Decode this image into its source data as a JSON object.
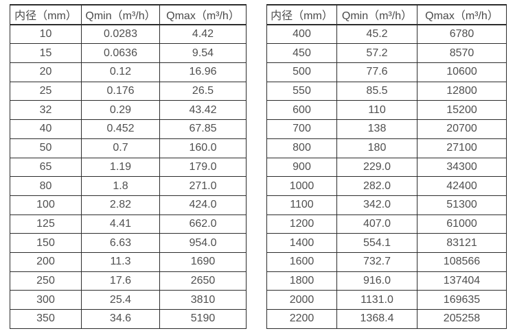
{
  "colors": {
    "background": "#ffffff",
    "border": "#2b2b2b",
    "text": "#4f4f4f"
  },
  "tables": [
    {
      "name": "flow-table-small-diameters",
      "headers": [
        "内径（mm）",
        "Qmin（m³/h）",
        "Qmax（m³/h）"
      ],
      "rows": [
        [
          "10",
          "0.0283",
          "4.42"
        ],
        [
          "15",
          "0.0636",
          "9.54"
        ],
        [
          "20",
          "0.12",
          "16.96"
        ],
        [
          "25",
          "0.176",
          "26.5"
        ],
        [
          "32",
          "0.29",
          "43.42"
        ],
        [
          "40",
          "0.452",
          "67.85"
        ],
        [
          "50",
          "0.7",
          "160.0"
        ],
        [
          "65",
          "1.19",
          "179.0"
        ],
        [
          "80",
          "1.8",
          "271.0"
        ],
        [
          "100",
          "2.82",
          "424.0"
        ],
        [
          "125",
          "4.41",
          "662.0"
        ],
        [
          "150",
          "6.63",
          "954.0"
        ],
        [
          "200",
          "11.3",
          "1690"
        ],
        [
          "250",
          "17.6",
          "2650"
        ],
        [
          "300",
          "25.4",
          "3810"
        ],
        [
          "350",
          "34.6",
          "5190"
        ]
      ]
    },
    {
      "name": "flow-table-large-diameters",
      "headers": [
        "内径（mm）",
        "Qmin（m³/h）",
        "Qmax（m³/h）"
      ],
      "rows": [
        [
          "400",
          "45.2",
          "6780"
        ],
        [
          "450",
          "57.2",
          "8570"
        ],
        [
          "500",
          "77.6",
          "10600"
        ],
        [
          "550",
          "85.5",
          "12800"
        ],
        [
          "600",
          "110",
          "15200"
        ],
        [
          "700",
          "138",
          "20700"
        ],
        [
          "800",
          "180",
          "27100"
        ],
        [
          "900",
          "229.0",
          "34300"
        ],
        [
          "1000",
          "282.0",
          "42400"
        ],
        [
          "1100",
          "342.0",
          "51300"
        ],
        [
          "1200",
          "407.0",
          "61000"
        ],
        [
          "1400",
          "554.1",
          "83121"
        ],
        [
          "1600",
          "732.7",
          "108566"
        ],
        [
          "1800",
          "916.0",
          "137404"
        ],
        [
          "2000",
          "1131.0",
          "169635"
        ],
        [
          "2200",
          "1368.4",
          "205258"
        ]
      ]
    }
  ]
}
